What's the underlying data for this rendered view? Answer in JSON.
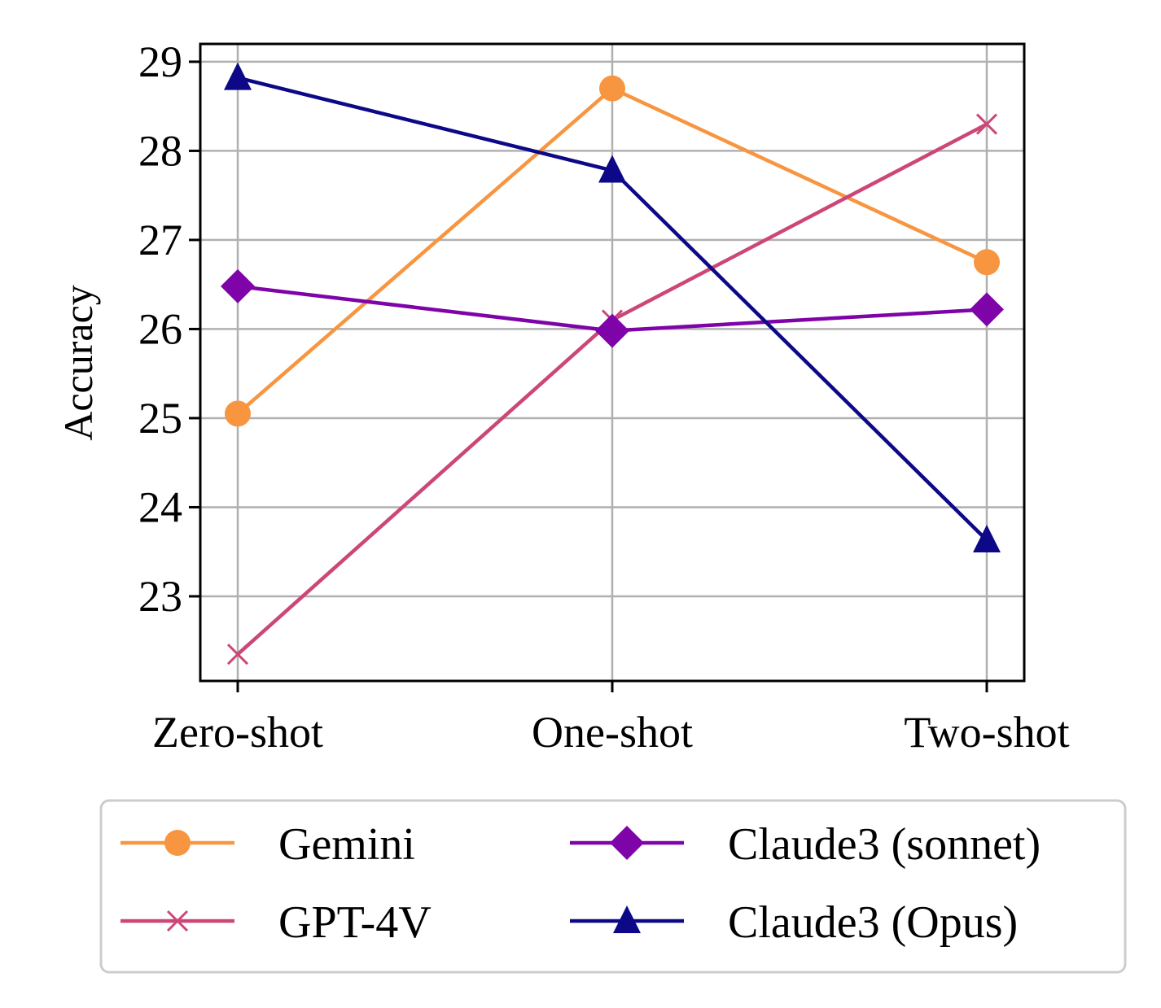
{
  "chart_data": {
    "type": "line",
    "title": "",
    "xlabel": "",
    "ylabel": "Accuracy",
    "categories": [
      "Zero-shot",
      "One-shot",
      "Two-shot"
    ],
    "ylim": [
      22.05,
      29.2
    ],
    "yticks": [
      23,
      24,
      25,
      26,
      27,
      28,
      29
    ],
    "grid": true,
    "legend_position": "bottom",
    "series": [
      {
        "name": "Gemini",
        "marker": "circle",
        "color": "#f89540",
        "values": [
          25.05,
          28.7,
          26.75
        ]
      },
      {
        "name": "GPT-4V",
        "marker": "x",
        "color": "#cc4778",
        "values": [
          22.35,
          26.1,
          28.3
        ]
      },
      {
        "name": "Claude3 (sonnet)",
        "marker": "diamond",
        "color": "#7e03a8",
        "values": [
          26.48,
          25.98,
          26.22
        ]
      },
      {
        "name": "Claude3 (Opus)",
        "marker": "triangle",
        "color": "#0d0887",
        "values": [
          28.82,
          27.78,
          23.63
        ]
      }
    ]
  }
}
